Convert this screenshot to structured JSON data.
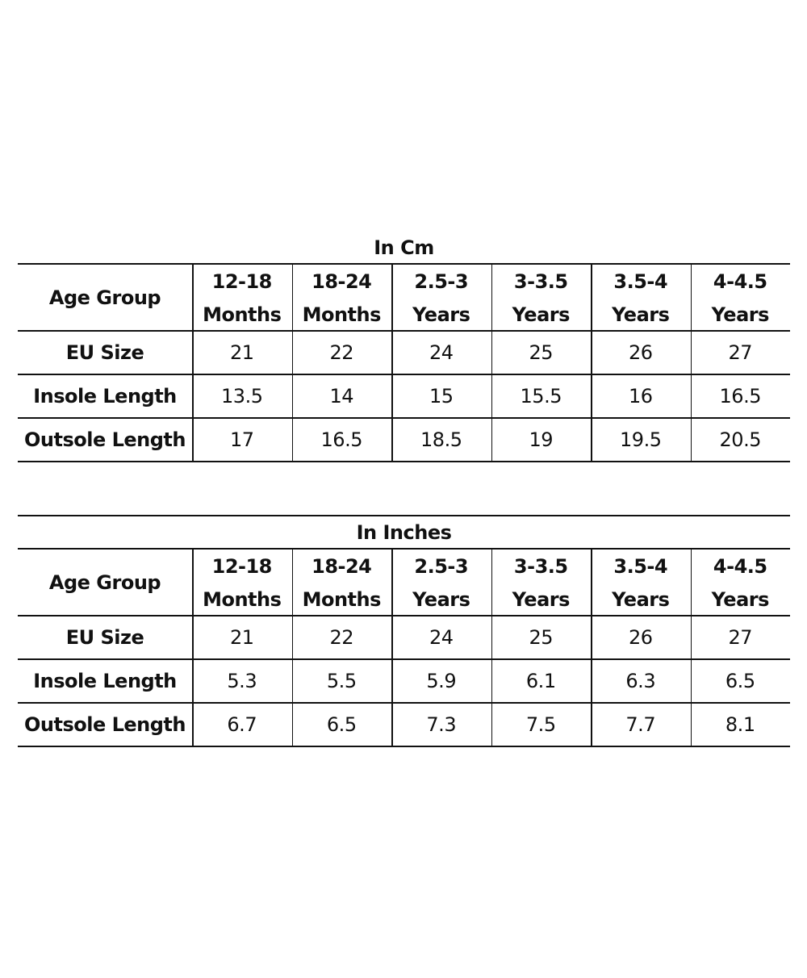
{
  "tables": [
    {
      "title": "In Cm",
      "header": {
        "label": "Age Group",
        "columns": [
          [
            "12-18",
            "Months"
          ],
          [
            "18-24",
            "Months"
          ],
          [
            "2.5-3",
            "Years"
          ],
          [
            "3-3.5",
            "Years"
          ],
          [
            "3.5-4",
            "Years"
          ],
          [
            "4-4.5",
            "Years"
          ]
        ]
      },
      "rows": [
        {
          "label": "EU Size",
          "cells": [
            "21",
            "22",
            "24",
            "25",
            "26",
            "27"
          ]
        },
        {
          "label": "Insole Length",
          "cells": [
            "13.5",
            "14",
            "15",
            "15.5",
            "16",
            "16.5"
          ]
        },
        {
          "label": "Outsole Length",
          "cells": [
            "17",
            "16.5",
            "18.5",
            "19",
            "19.5",
            "20.5"
          ]
        }
      ]
    },
    {
      "title": "In Inches",
      "header": {
        "label": "Age Group",
        "columns": [
          [
            "12-18",
            "Months"
          ],
          [
            "18-24",
            "Months"
          ],
          [
            "2.5-3",
            "Years"
          ],
          [
            "3-3.5",
            "Years"
          ],
          [
            "3.5-4",
            "Years"
          ],
          [
            "4-4.5",
            "Years"
          ]
        ]
      },
      "rows": [
        {
          "label": "EU Size",
          "cells": [
            "21",
            "22",
            "24",
            "25",
            "26",
            "27"
          ]
        },
        {
          "label": "Insole Length",
          "cells": [
            "5.3",
            "5.5",
            "5.9",
            "6.1",
            "6.3",
            "6.5"
          ]
        },
        {
          "label": "Outsole Length",
          "cells": [
            "6.7",
            "6.5",
            "7.3",
            "7.5",
            "7.7",
            "8.1"
          ]
        }
      ]
    }
  ]
}
